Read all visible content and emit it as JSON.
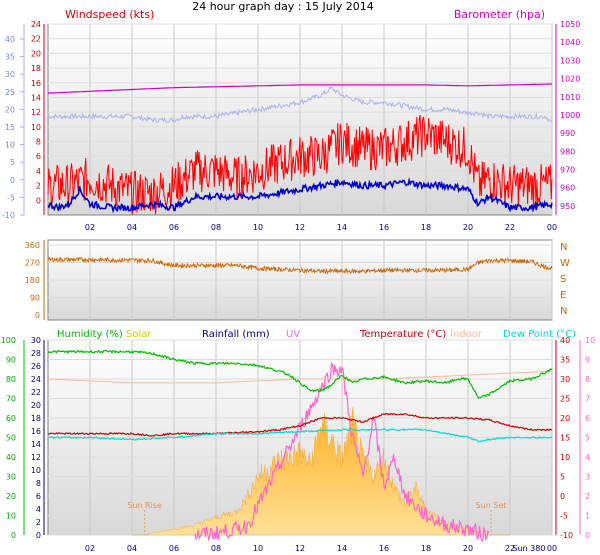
{
  "title": "24 hour graph day : 15 July 2014",
  "colors": {
    "windspeed": "#ff0000",
    "windavg": "#0000cc",
    "baro": "#cc00cc",
    "gust": "#aab0ee",
    "winddir": "#cc6600",
    "humidity": "#00bb00",
    "solar": "#ffc040",
    "rainfall": "#000080",
    "uv": "#ff66cc",
    "temperature": "#cc0000",
    "indoor": "#ffb898",
    "dewpoint": "#00dddd"
  },
  "x_ticks": [
    "02",
    "04",
    "06",
    "08",
    "10",
    "12",
    "14",
    "16",
    "18",
    "20",
    "22",
    "00"
  ],
  "chart_data": [
    {
      "type": "line",
      "title": "24 hour graph day : 15 July 2014",
      "left_label": "Windspeed (kts)",
      "right_label": "Barometer (hpa)",
      "outer_ticks": [
        "40",
        "35",
        "30",
        "25",
        "20",
        "15",
        "10",
        "5",
        "0",
        "-5",
        "-10"
      ],
      "inner_ticks": [
        "24",
        "22",
        "20",
        "18",
        "16",
        "14",
        "12",
        "10",
        "8",
        "6",
        "4",
        "2",
        "0"
      ],
      "right_ticks": [
        "1050",
        "1040",
        "1030",
        "1020",
        "1010",
        "1000",
        "990",
        "980",
        "970",
        "960",
        "950"
      ],
      "series": [
        {
          "role": "gust",
          "x": [
            0,
            1,
            2,
            3,
            4,
            5,
            6,
            6.5,
            7,
            8,
            9,
            10,
            11,
            12,
            13,
            13.5,
            14,
            15,
            16,
            17,
            18,
            19,
            20,
            20.5,
            21,
            22,
            23,
            23.7,
            24
          ],
          "values": [
            18,
            18,
            18,
            18,
            18,
            17,
            17,
            18,
            18,
            18,
            19,
            20,
            21,
            22,
            24,
            26,
            24,
            22,
            22,
            21,
            20,
            20,
            19,
            19,
            18,
            18,
            18,
            18,
            16
          ]
        },
        {
          "role": "baro",
          "x": [
            0,
            2,
            4,
            6,
            8,
            10,
            12,
            14,
            16,
            18,
            20,
            22,
            24
          ],
          "values": [
            1012,
            1013,
            1014,
            1015,
            1015.5,
            1016,
            1016.5,
            1016.5,
            1016.5,
            1016.5,
            1016,
            1016.5,
            1017
          ]
        },
        {
          "role": "windspeed",
          "x": [
            0,
            1,
            2,
            3,
            4,
            5,
            6,
            7,
            8,
            9,
            10,
            11,
            12,
            13,
            14,
            15,
            16,
            17,
            18,
            19,
            20,
            20.5,
            21,
            22,
            23,
            24
          ],
          "values": [
            2,
            2,
            3,
            2,
            1,
            1,
            2,
            4,
            4,
            3,
            4,
            5,
            6,
            6,
            8,
            7,
            7,
            8,
            9,
            8,
            7,
            2,
            3,
            2,
            2,
            2
          ]
        },
        {
          "role": "windavg",
          "x": [
            0,
            0.5,
            1,
            1.5,
            2,
            3,
            4,
            5,
            6,
            7,
            8,
            9,
            10,
            11,
            12,
            13,
            14,
            15,
            16,
            17,
            18,
            19,
            20,
            20.5,
            21,
            22,
            23,
            24
          ],
          "values": [
            -0.5,
            -1,
            -0.5,
            1.5,
            -0.5,
            -1,
            -1,
            -0.5,
            -1,
            0.5,
            0.5,
            0.5,
            0.5,
            1,
            1.5,
            2,
            2.5,
            2,
            2,
            2.5,
            2,
            2,
            1.5,
            -0.5,
            0.5,
            -1,
            -1,
            -0.5
          ]
        }
      ]
    },
    {
      "type": "line",
      "title": "",
      "left_ticks": [
        "360",
        "270",
        "180",
        "90",
        "0"
      ],
      "right_labels": [
        "N",
        "W",
        "S",
        "E",
        "N"
      ],
      "series": [
        {
          "role": "winddir",
          "x": [
            0,
            1,
            2,
            3,
            4,
            5,
            5.5,
            6,
            7,
            8,
            9,
            10,
            11,
            12,
            13,
            14,
            15,
            16,
            17,
            18,
            19,
            20,
            20.5,
            21,
            22,
            23,
            23.6,
            24
          ],
          "values": [
            285,
            285,
            285,
            283,
            283,
            280,
            265,
            255,
            255,
            255,
            255,
            240,
            235,
            230,
            225,
            225,
            225,
            230,
            230,
            230,
            230,
            235,
            270,
            280,
            280,
            275,
            250,
            240
          ]
        }
      ]
    },
    {
      "type": "line",
      "title": "",
      "legend": [
        "Humidity (%)",
        "Solar",
        "Rainfall (mm)",
        "UV",
        "Temperature (°C)",
        "Indoor",
        "Dew Point (°C)"
      ],
      "humidity_ticks": [
        "100",
        "90",
        "80",
        "70",
        "60",
        "50",
        "40",
        "30",
        "20",
        "10",
        "0"
      ],
      "rain_ticks": [
        "30",
        "28",
        "26",
        "24",
        "22",
        "20",
        "18",
        "16",
        "14",
        "12",
        "10",
        "8",
        "6",
        "4",
        "2",
        "0"
      ],
      "temp_ticks": [
        "40",
        "35",
        "30",
        "25",
        "20",
        "15",
        "10",
        "5",
        "0",
        "-5",
        "-10"
      ],
      "uv_ticks": [
        "10",
        "9",
        "8",
        "7",
        "6",
        "5",
        "4",
        "3",
        "2",
        "1",
        "0"
      ],
      "annotations": [
        "Sun Rise",
        "Sun Set",
        "Sun 380"
      ],
      "series": [
        {
          "role": "humidity",
          "x": [
            0,
            2,
            4,
            5,
            6,
            7,
            8,
            9,
            10,
            11,
            11.5,
            12,
            12.5,
            13,
            13.5,
            14,
            14.5,
            15,
            16,
            17,
            18,
            19,
            19.5,
            20,
            20.5,
            21,
            22,
            23,
            24
          ],
          "values": [
            94,
            94,
            94,
            93,
            90,
            88,
            88,
            88,
            87,
            84,
            82,
            78,
            74,
            74,
            77,
            82,
            78,
            80,
            81,
            78,
            79,
            78,
            80,
            80,
            70,
            72,
            79,
            80,
            85
          ]
        },
        {
          "role": "indoor",
          "x": [
            0,
            4,
            8,
            12,
            16,
            20,
            24
          ],
          "values": [
            30,
            29,
            29,
            30,
            30,
            31,
            32
          ]
        },
        {
          "role": "temperature",
          "x": [
            0,
            2,
            4,
            5,
            6,
            8,
            10,
            11,
            12,
            13,
            14,
            15,
            16,
            17,
            18,
            19,
            20,
            21,
            22,
            23,
            24
          ],
          "values": [
            16,
            16,
            16,
            15.5,
            16,
            16,
            16.5,
            17,
            18,
            20,
            20,
            19,
            21,
            21,
            20,
            20,
            20,
            19.5,
            18,
            17,
            17
          ]
        },
        {
          "role": "dewpoint",
          "x": [
            0,
            2,
            4,
            6,
            8,
            10,
            12,
            14,
            16,
            18,
            19,
            20,
            20.5,
            21,
            22,
            24
          ],
          "values": [
            15,
            15,
            14.5,
            15,
            16,
            16,
            16.5,
            17,
            17,
            17,
            16,
            15,
            14,
            14.5,
            15,
            15
          ]
        },
        {
          "role": "solar",
          "x": [
            4,
            4.5,
            5,
            6,
            7,
            8,
            9,
            9.5,
            10,
            10.5,
            11,
            11.5,
            12,
            12.5,
            13,
            13.5,
            14,
            14.5,
            15,
            15.5,
            16,
            16.5,
            17,
            17.5,
            18,
            18.5,
            19,
            20,
            20.5,
            21,
            22
          ],
          "values": [
            0,
            0,
            1,
            3,
            5,
            9,
            12,
            20,
            30,
            34,
            38,
            40,
            42,
            36,
            56,
            49,
            38,
            57,
            38,
            30,
            40,
            24,
            16,
            24,
            13,
            10,
            6,
            3,
            1,
            0,
            0
          ]
        },
        {
          "role": "uv",
          "x": [
            7,
            8,
            9,
            9.5,
            10,
            10.5,
            11,
            11.5,
            12,
            12.5,
            13,
            13.5,
            14,
            14.5,
            15,
            15.5,
            16,
            16.5,
            17,
            17.5,
            18,
            19,
            20,
            20.5,
            21
          ],
          "values": [
            0,
            0.1,
            0.3,
            0.5,
            1.5,
            2.5,
            3.5,
            4.5,
            5.5,
            6.5,
            7.5,
            8.5,
            8.5,
            5,
            3,
            6,
            2.5,
            4,
            2,
            1.5,
            1,
            0.5,
            0.3,
            0.1,
            0
          ]
        }
      ]
    }
  ]
}
